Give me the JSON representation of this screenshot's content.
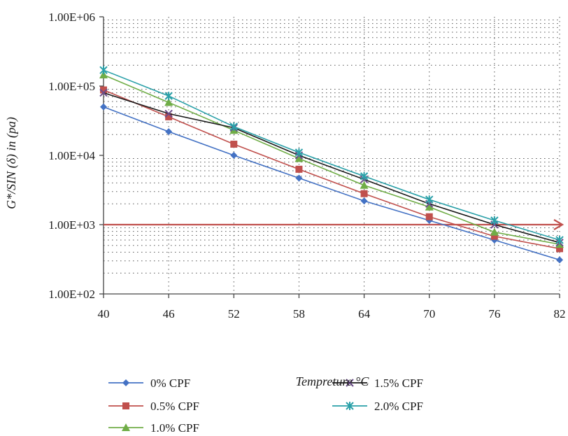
{
  "chart_data": {
    "type": "line",
    "title": "",
    "xlabel": "Tempreture °C",
    "ylabel": "G*/SIN (δ) in (pa)",
    "y_scale": "log",
    "ylim": [
      100,
      1000000
    ],
    "xlim": [
      40,
      82
    ],
    "x": [
      40,
      46,
      52,
      58,
      64,
      70,
      76,
      82
    ],
    "x_tick_labels": [
      "40",
      "46",
      "52",
      "58",
      "64",
      "70",
      "76",
      "82"
    ],
    "y_tick_labels": [
      "1.00E+02",
      "1.00E+03",
      "1.00E+04",
      "1.00E+05",
      "1.00E+06"
    ],
    "y_tick_values": [
      100,
      1000,
      10000,
      100000,
      1000000
    ],
    "grid": "dotted",
    "legend_position": "bottom",
    "reference_line": {
      "y": 1000,
      "color": "#c0504d",
      "arrow": true
    },
    "series": [
      {
        "name": "0% CPF",
        "color": "#4472c4",
        "marker": "diamond",
        "values": [
          50000,
          22000,
          10000,
          4700,
          2200,
          1150,
          600,
          310
        ]
      },
      {
        "name": "0.5% CPF",
        "color": "#c0504d",
        "marker": "square",
        "values": [
          88000,
          36000,
          14500,
          6300,
          2800,
          1300,
          680,
          450
        ]
      },
      {
        "name": "1.0% CPF",
        "color": "#70ad47",
        "marker": "triangle",
        "values": [
          145000,
          58000,
          23000,
          9000,
          3700,
          1800,
          780,
          520
        ]
      },
      {
        "name": "1.5% CPF",
        "color": "#1a1a1a",
        "marker": "x",
        "values": [
          80000,
          40000,
          25000,
          10000,
          4500,
          2000,
          1000,
          550
        ]
      },
      {
        "name": "2.0% CPF",
        "color": "#2aa0a8",
        "marker": "star",
        "values": [
          170000,
          72000,
          26000,
          11000,
          5000,
          2300,
          1150,
          600
        ]
      }
    ]
  }
}
